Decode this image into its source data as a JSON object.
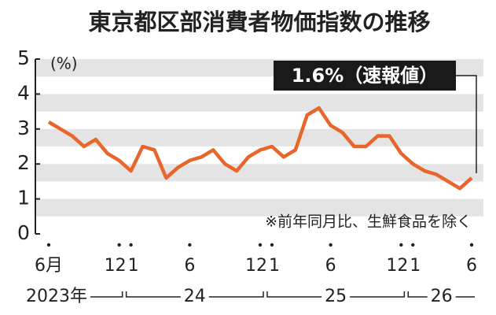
{
  "chart_data": {
    "type": "line",
    "title": "東京都区部消費者物価指数の推移",
    "y_unit": "(%)",
    "annotation": "1.6%（速報値）",
    "note": "※前年同月比、生鮮食品を除く",
    "categories": [
      "6月",
      null,
      null,
      null,
      null,
      null,
      "12",
      "1",
      null,
      null,
      null,
      null,
      "6",
      null,
      null,
      null,
      null,
      null,
      "12",
      "1",
      null,
      null,
      null,
      null,
      "6",
      null,
      null,
      null,
      null,
      null,
      "12",
      "1",
      null,
      null,
      null,
      null,
      "6"
    ],
    "year_labels": [
      "2023年",
      "24",
      "25",
      "26"
    ],
    "series": [
      {
        "name": "東京都区部消費者物価指数",
        "color": "#e8652c",
        "values": [
          3.2,
          3.0,
          2.8,
          2.5,
          2.7,
          2.3,
          2.1,
          1.8,
          2.5,
          2.4,
          1.6,
          1.9,
          2.1,
          2.2,
          2.4,
          2.0,
          1.8,
          2.2,
          2.4,
          2.5,
          2.2,
          2.4,
          3.4,
          3.6,
          3.1,
          2.9,
          2.5,
          2.5,
          2.8,
          2.8,
          2.3,
          2.0,
          1.8,
          1.7,
          1.5,
          1.3,
          1.6
        ]
      }
    ],
    "ylim": [
      0,
      5
    ],
    "yticks": [
      0,
      1,
      2,
      3,
      4,
      5
    ],
    "grid": true
  }
}
